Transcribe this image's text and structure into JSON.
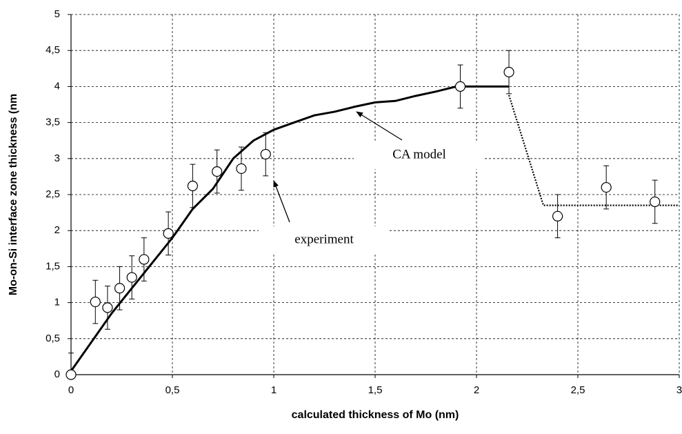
{
  "chart_data": {
    "type": "line",
    "xlabel": "calculated thickness of  Mo (nm)",
    "ylabel": "Mo-on-Si interface zone thickness (nm",
    "xlim": [
      0,
      3
    ],
    "ylim": [
      0,
      5
    ],
    "xticks": [
      0,
      {
        "value": 0.5,
        "label": "0,5"
      },
      1,
      {
        "value": 1.5,
        "label": "1,5"
      },
      2,
      {
        "value": 2.5,
        "label": "2,5"
      },
      3
    ],
    "yticks": [
      0,
      {
        "value": 0.5,
        "label": "0,5"
      },
      1,
      {
        "value": 1.5,
        "label": "1,5"
      },
      2,
      {
        "value": 2.5,
        "label": "2,5"
      },
      3,
      {
        "value": 3.5,
        "label": "3,5"
      },
      4,
      {
        "value": 4.5,
        "label": "4,5"
      },
      5
    ],
    "grid": true,
    "annotations": [
      "CA model",
      "experiment"
    ],
    "series": [
      {
        "type": "scatter",
        "color": "#000000",
        "x": [
          0,
          0.12,
          0.18,
          0.24,
          0.3,
          0.36,
          0.48,
          0.6,
          0.72,
          0.84,
          0.96,
          1.92,
          2.16,
          2.4,
          2.64,
          2.88
        ],
        "values": [
          0,
          1.01,
          0.93,
          1.2,
          1.35,
          1.6,
          1.96,
          2.62,
          2.82,
          2.86,
          3.06,
          4.0,
          4.2,
          2.2,
          2.6,
          2.4
        ],
        "errors": [
          0.3,
          0.3,
          0.3,
          0.3,
          0.3,
          0.3,
          0.3,
          0.3,
          0.3,
          0.3,
          0.3,
          0.3,
          0.3,
          0.3,
          0.3,
          0.3
        ]
      },
      {
        "type": "line",
        "style": "solid",
        "color": "#000000",
        "x": [
          0,
          0.1,
          0.2,
          0.3,
          0.4,
          0.5,
          0.6,
          0.7,
          0.8,
          0.9,
          1.0,
          1.1,
          1.2,
          1.3,
          1.4,
          1.5,
          1.6,
          1.7,
          1.8,
          1.9,
          2.16
        ],
        "values": [
          0.05,
          0.45,
          0.85,
          1.2,
          1.55,
          1.9,
          2.3,
          2.58,
          3.0,
          3.25,
          3.4,
          3.5,
          3.6,
          3.65,
          3.72,
          3.78,
          3.8,
          3.87,
          3.93,
          4.0,
          4.0
        ]
      },
      {
        "type": "line",
        "style": "dotted",
        "color": "#000000",
        "x": [
          2.16,
          2.33,
          3.0
        ],
        "values": [
          3.88,
          2.35,
          2.35
        ]
      }
    ]
  }
}
